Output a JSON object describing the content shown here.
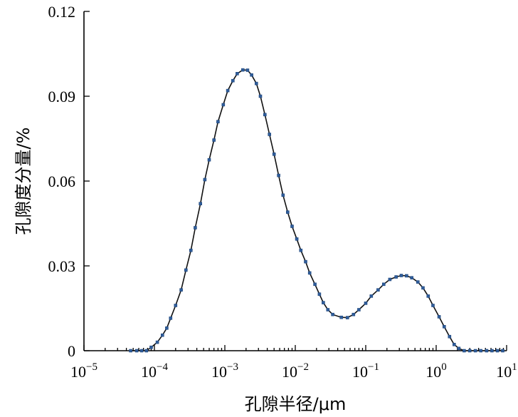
{
  "chart_data": {
    "type": "line",
    "title": "",
    "xlabel": "孔隙半径/μm",
    "ylabel": "孔隙度分量/%",
    "x_scale": "log",
    "xlim": [
      1e-05,
      10
    ],
    "ylim": [
      0,
      0.12
    ],
    "x_tick_values": [
      1e-05,
      0.0001,
      0.001,
      0.01,
      0.1,
      1,
      10
    ],
    "x_ticks": [
      {
        "base": "10",
        "exp": "−5"
      },
      {
        "base": "10",
        "exp": "−4"
      },
      {
        "base": "10",
        "exp": "−3"
      },
      {
        "base": "10",
        "exp": "−2"
      },
      {
        "base": "10",
        "exp": "−1"
      },
      {
        "base": "10",
        "exp": "0"
      },
      {
        "base": "10",
        "exp": "1"
      }
    ],
    "y_ticks": [
      {
        "value": 0,
        "label": "0"
      },
      {
        "value": 0.03,
        "label": "0.03"
      },
      {
        "value": 0.06,
        "label": "0.06"
      },
      {
        "value": 0.09,
        "label": "0.09"
      },
      {
        "value": 0.12,
        "label": "0.12"
      }
    ],
    "grid": false,
    "legend": "none",
    "series": [
      {
        "color": "#2f5d9b",
        "points": [
          [
            4.6e-05,
            0
          ],
          [
            5.6e-05,
            0
          ],
          [
            6.6e-05,
            0
          ],
          [
            7.7e-05,
            0
          ],
          [
            9e-05,
            0.0012
          ],
          [
            0.00011,
            0.003
          ],
          [
            0.00013,
            0.0055
          ],
          [
            0.00015,
            0.008
          ],
          [
            0.00017,
            0.0115
          ],
          [
            0.0002,
            0.016
          ],
          [
            0.00024,
            0.0215
          ],
          [
            0.00028,
            0.0285
          ],
          [
            0.00033,
            0.0355
          ],
          [
            0.00038,
            0.0435
          ],
          [
            0.00045,
            0.052
          ],
          [
            0.00052,
            0.0605
          ],
          [
            0.0006,
            0.0675
          ],
          [
            0.0007,
            0.0745
          ],
          [
            0.0008,
            0.081
          ],
          [
            0.00095,
            0.087
          ],
          [
            0.0011,
            0.092
          ],
          [
            0.0013,
            0.0955
          ],
          [
            0.0015,
            0.098
          ],
          [
            0.0018,
            0.0993
          ],
          [
            0.0021,
            0.0992
          ],
          [
            0.0024,
            0.0975
          ],
          [
            0.0028,
            0.0945
          ],
          [
            0.0032,
            0.09
          ],
          [
            0.0037,
            0.0835
          ],
          [
            0.0043,
            0.0765
          ],
          [
            0.005,
            0.0695
          ],
          [
            0.0058,
            0.062
          ],
          [
            0.0067,
            0.055
          ],
          [
            0.0078,
            0.049
          ],
          [
            0.009,
            0.044
          ],
          [
            0.0105,
            0.0395
          ],
          [
            0.012,
            0.0355
          ],
          [
            0.014,
            0.0315
          ],
          [
            0.016,
            0.0275
          ],
          [
            0.019,
            0.0235
          ],
          [
            0.022,
            0.02
          ],
          [
            0.025,
            0.017
          ],
          [
            0.029,
            0.0145
          ],
          [
            0.034,
            0.0128
          ],
          [
            0.045,
            0.0118
          ],
          [
            0.055,
            0.0117
          ],
          [
            0.067,
            0.0128
          ],
          [
            0.08,
            0.0145
          ],
          [
            0.1,
            0.0168
          ],
          [
            0.12,
            0.0193
          ],
          [
            0.15,
            0.0215
          ],
          [
            0.18,
            0.0235
          ],
          [
            0.22,
            0.0252
          ],
          [
            0.27,
            0.0261
          ],
          [
            0.32,
            0.0266
          ],
          [
            0.38,
            0.0265
          ],
          [
            0.45,
            0.0258
          ],
          [
            0.55,
            0.0243
          ],
          [
            0.65,
            0.0222
          ],
          [
            0.77,
            0.0193
          ],
          [
            0.9,
            0.016
          ],
          [
            1.1,
            0.012
          ],
          [
            1.3,
            0.0085
          ],
          [
            1.55,
            0.005
          ],
          [
            1.8,
            0.0022
          ],
          [
            2.1,
            0.0008
          ],
          [
            2.5,
            0
          ],
          [
            3,
            0
          ],
          [
            3.6,
            0
          ],
          [
            4.3,
            0
          ],
          [
            5.2,
            0
          ],
          [
            6.2,
            0
          ],
          [
            7.4,
            0
          ],
          [
            8.8,
            0
          ]
        ]
      }
    ]
  }
}
